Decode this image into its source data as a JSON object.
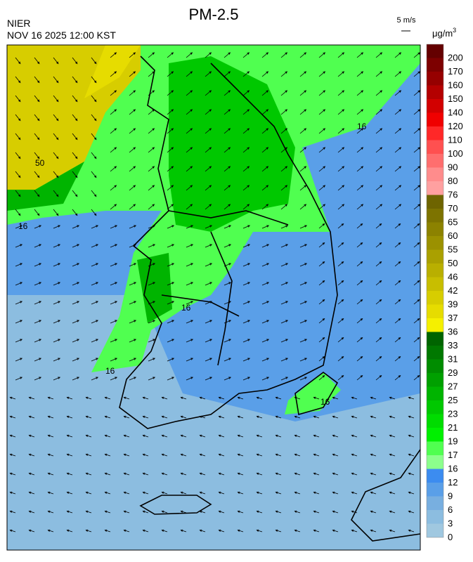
{
  "header": {
    "title": "PM-2.5",
    "agency": "NIER",
    "datetime": "NOV 16 2025 12:00 KST",
    "wind_scale": "5 m/s"
  },
  "colorbar": {
    "unit": "μg/m",
    "unit_power": "3",
    "labels": [
      "200",
      "170",
      "160",
      "150",
      "140",
      "120",
      "110",
      "100",
      "90",
      "80",
      "76",
      "70",
      "65",
      "60",
      "55",
      "50",
      "46",
      "42",
      "39",
      "37",
      "36",
      "33",
      "31",
      "29",
      "27",
      "25",
      "23",
      "21",
      "19",
      "17",
      "16",
      "12",
      "9",
      "6",
      "3",
      "0"
    ],
    "colors": [
      "#640000",
      "#7d0000",
      "#960000",
      "#b40000",
      "#d20000",
      "#f00000",
      "#ff2828",
      "#ff5050",
      "#ff6e6e",
      "#ff8c8c",
      "#ffa0a0",
      "#6e6400",
      "#7d7300",
      "#8c8200",
      "#9b9100",
      "#aaa000",
      "#b9af00",
      "#c8be00",
      "#d7cd00",
      "#e6dc00",
      "#f5f000",
      "#006400",
      "#007800",
      "#008c00",
      "#00a000",
      "#00b400",
      "#00c800",
      "#00dc00",
      "#00f000",
      "#50ff50",
      "#8cff8c",
      "#3c8cf0",
      "#5a9fe8",
      "#78afe0",
      "#8cbde0",
      "#a0c8e0"
    ]
  },
  "contour_labels": [
    "16",
    "50",
    "16",
    "16",
    "16",
    "16"
  ]
}
